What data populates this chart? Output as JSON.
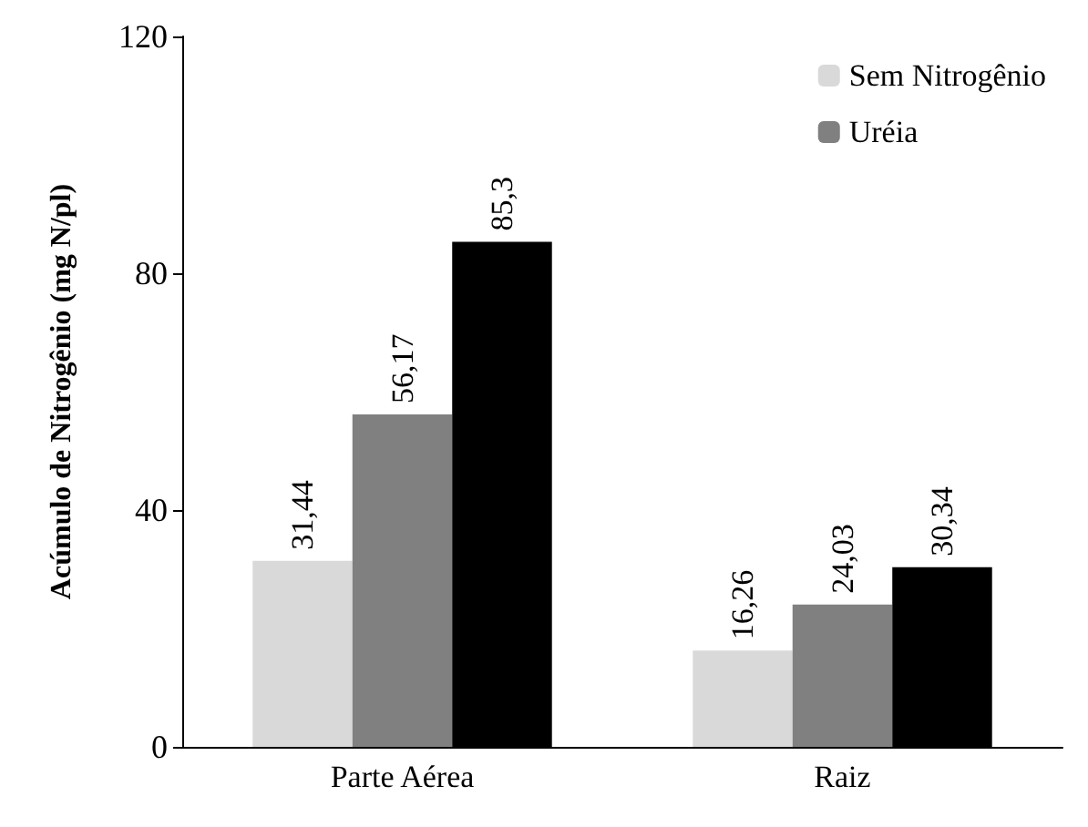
{
  "chart_data": {
    "type": "bar",
    "ylabel": "Acúmulo de Nitrogênio (mg N/pl)",
    "categories": [
      "Parte Aérea",
      "Raiz"
    ],
    "series": [
      {
        "name": "Sem Nitrogênio",
        "color": "#d9d9d9",
        "values": [
          31.44,
          16.26
        ],
        "value_labels": [
          "31,44",
          "16,26"
        ]
      },
      {
        "name": "Uréia",
        "color": "#808080",
        "values": [
          56.17,
          24.03
        ],
        "value_labels": [
          "56,17",
          "24,03"
        ]
      },
      {
        "color": "#000000",
        "values": [
          85.3,
          30.34
        ],
        "value_labels": [
          "85,3",
          "30,34"
        ]
      }
    ],
    "ylim": [
      0,
      120
    ],
    "yticks": [
      0,
      40,
      80,
      120
    ],
    "grid": false,
    "legend": "top right"
  }
}
